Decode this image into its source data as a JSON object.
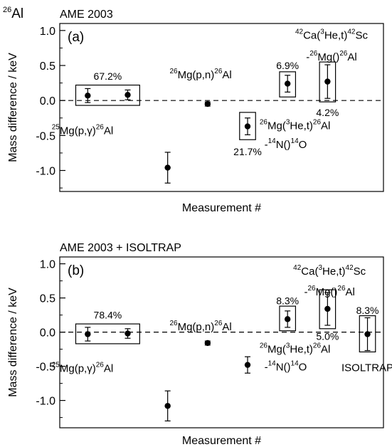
{
  "figure": {
    "isotope_mass": "26",
    "isotope_symbol": "Al"
  },
  "chart_data": [
    {
      "type": "scatter",
      "panel_label": "(a)",
      "title": "AME 2003",
      "xlabel": "Measurement #",
      "ylabel": "Mass difference / keV",
      "ylim": [
        -1.3,
        1.1
      ],
      "yticks": [
        "-1.0",
        "-0.5",
        "0.0",
        "0.5",
        "1.0"
      ],
      "ytick_values": [
        -1.0,
        -0.5,
        0.0,
        0.5,
        1.0
      ],
      "xlim": [
        0.3,
        8.4
      ],
      "reference_line": {
        "y": 0,
        "style": "dashed"
      },
      "points": [
        {
          "x": 1,
          "y": 0.07,
          "err": 0.1
        },
        {
          "x": 2,
          "y": 0.08,
          "err": 0.07
        },
        {
          "x": 3,
          "y": -0.96,
          "err": 0.22
        },
        {
          "x": 4,
          "y": -0.05,
          "err": 0.03
        },
        {
          "x": 5,
          "y": -0.37,
          "err": 0.12
        },
        {
          "x": 6,
          "y": 0.24,
          "err": 0.12
        },
        {
          "x": 7,
          "y": 0.27,
          "err": 0.24
        }
      ],
      "boxes": [
        {
          "x_from": 0.7,
          "x_to": 2.3,
          "y_from": -0.07,
          "y_to": 0.22
        },
        {
          "x_from": 4.8,
          "x_to": 5.2,
          "y_from": -0.56,
          "y_to": -0.17
        },
        {
          "x_from": 5.8,
          "x_to": 6.2,
          "y_from": 0.05,
          "y_to": 0.41
        },
        {
          "x_from": 6.8,
          "x_to": 7.2,
          "y_from": -0.02,
          "y_to": 0.55
        }
      ],
      "percents": [
        {
          "text": "67.2%",
          "x": 1.5,
          "y": 0.35
        },
        {
          "text": "21.7%",
          "x": 5.0,
          "y": -0.73
        },
        {
          "text": "6.9%",
          "x": 6.0,
          "y": 0.5
        },
        {
          "text": "4.2%",
          "x": 7.0,
          "y": -0.17
        }
      ],
      "reactions": [
        {
          "pre": "25",
          "a": "Mg(p,",
          "greek": "γ",
          "b": ")",
          "post": "26",
          "c": "Al",
          "x": 0.1,
          "y": -0.43,
          "anchor": "start"
        },
        {
          "pre": "26",
          "a": "Mg(p,n)",
          "post": "26",
          "c": "Al",
          "x": 3.05,
          "y": 0.37,
          "anchor": "start"
        },
        {
          "pre": "26",
          "a": "Mg(",
          "sup": "3",
          "b": "He,t)",
          "post": "26",
          "c": "Al",
          "x": 5.3,
          "y": -0.36,
          "anchor": "start"
        },
        {
          "dash": "-",
          "pre": "14",
          "a": "N()",
          "post": "14",
          "c": "O",
          "x": 5.42,
          "y": -0.63,
          "anchor": "start"
        },
        {
          "pre": "42",
          "a": "Ca(",
          "sup": "3",
          "b": "He,t)",
          "post": "42",
          "c": "Sc",
          "x": 7.1,
          "y": 0.93,
          "anchor": "middle"
        },
        {
          "dash": "-",
          "pre": "26",
          "a": "Mg()",
          "post": "26",
          "c": "Al",
          "x": 7.1,
          "y": 0.62,
          "anchor": "middle"
        }
      ]
    },
    {
      "type": "scatter",
      "panel_label": "(b)",
      "title": "AME 2003 + ISOLTRAP",
      "xlabel": "Measurement #",
      "ylabel": "Mass difference / keV",
      "ylim": [
        -1.4,
        1.1
      ],
      "yticks": [
        "-1.0",
        "-0.5",
        "0.0",
        "0.5",
        "1.0"
      ],
      "ytick_values": [
        -1.0,
        -0.5,
        0.0,
        0.5,
        1.0
      ],
      "xlim": [
        0.3,
        8.4
      ],
      "reference_line": {
        "y": 0,
        "style": "dashed"
      },
      "points": [
        {
          "x": 1,
          "y": -0.03,
          "err": 0.1
        },
        {
          "x": 2,
          "y": -0.02,
          "err": 0.07
        },
        {
          "x": 3,
          "y": -1.08,
          "err": 0.22
        },
        {
          "x": 4,
          "y": -0.16,
          "err": 0.03
        },
        {
          "x": 5,
          "y": -0.48,
          "err": 0.12
        },
        {
          "x": 6,
          "y": 0.19,
          "err": 0.12
        },
        {
          "x": 7,
          "y": 0.34,
          "err": 0.24
        },
        {
          "x": 8,
          "y": -0.03,
          "err": 0.24
        }
      ],
      "boxes": [
        {
          "x_from": 0.7,
          "x_to": 2.3,
          "y_from": -0.17,
          "y_to": 0.12
        },
        {
          "x_from": 5.8,
          "x_to": 6.2,
          "y_from": 0.02,
          "y_to": 0.38
        },
        {
          "x_from": 6.8,
          "x_to": 7.2,
          "y_from": 0.05,
          "y_to": 0.62
        },
        {
          "x_from": 7.8,
          "x_to": 8.2,
          "y_from": -0.29,
          "y_to": 0.24
        }
      ],
      "percents": [
        {
          "text": "78.4%",
          "x": 1.5,
          "y": 0.25
        },
        {
          "text": "8.3%",
          "x": 6.0,
          "y": 0.46
        },
        {
          "text": "5.0%",
          "x": 7.0,
          "y": -0.06
        },
        {
          "text": "8.3%",
          "x": 8.0,
          "y": 0.32
        }
      ],
      "reactions": [
        {
          "pre": "25",
          "a": "Mg(p,",
          "greek": "γ",
          "b": ")",
          "post": "26",
          "c": "Al",
          "x": 0.1,
          "y": -0.53,
          "anchor": "start"
        },
        {
          "pre": "26",
          "a": "Mg(p,n)",
          "post": "26",
          "c": "Al",
          "x": 3.05,
          "y": 0.08,
          "anchor": "start"
        },
        {
          "pre": "26",
          "a": "Mg(",
          "sup": "3",
          "b": "He,t)",
          "post": "26",
          "c": "Al",
          "x": 5.3,
          "y": -0.25,
          "anchor": "start"
        },
        {
          "dash": "-",
          "pre": "14",
          "a": "N()",
          "post": "14",
          "c": "O",
          "x": 5.42,
          "y": -0.51,
          "anchor": "start"
        },
        {
          "pre": "42",
          "a": "Ca(",
          "sup": "3",
          "b": "He,t)",
          "post": "42",
          "c": "Sc",
          "x": 7.05,
          "y": 0.89,
          "anchor": "middle"
        },
        {
          "dash": "-",
          "pre": "26",
          "a": "Mg()",
          "post": "26",
          "c": "Al",
          "x": 7.05,
          "y": 0.59,
          "anchor": "middle"
        },
        {
          "a": "ISOLTRAP",
          "x": 8.0,
          "y": -0.52,
          "anchor": "middle"
        }
      ]
    }
  ]
}
